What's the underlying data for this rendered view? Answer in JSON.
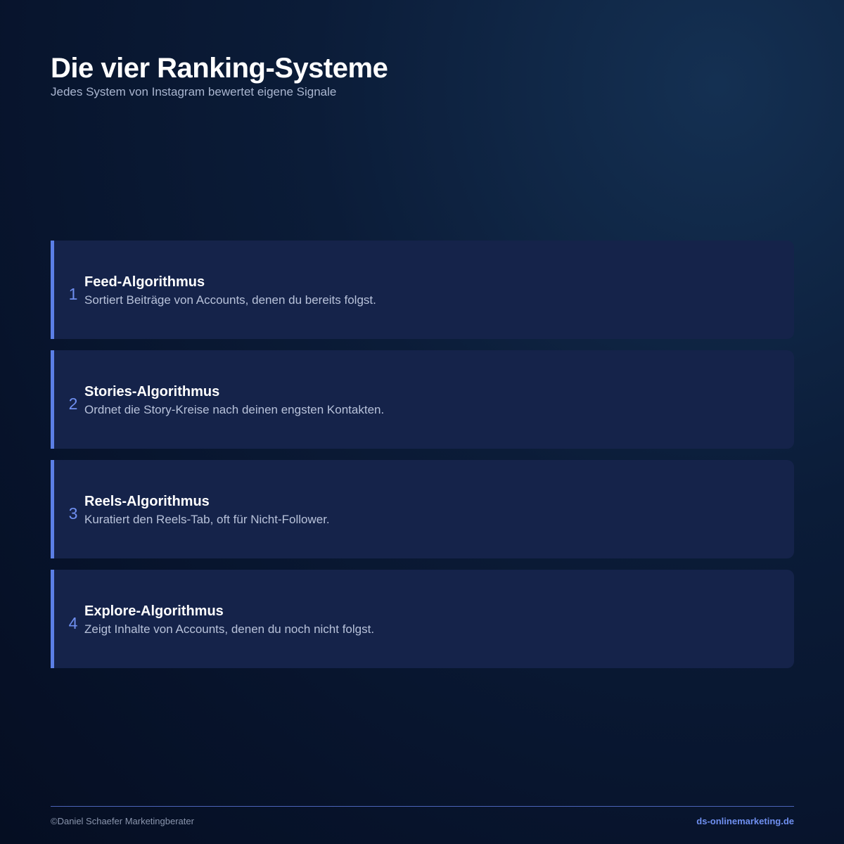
{
  "header": {
    "title": "Die vier Ranking-Systeme",
    "subtitle": "Jedes System von Instagram bewertet eigene Signale"
  },
  "cards": [
    {
      "number": "1",
      "title": "Feed-Algorithmus",
      "description": "Sortiert Beiträge von Accounts, denen du bereits folgst."
    },
    {
      "number": "2",
      "title": "Stories-Algorithmus",
      "description": "Ordnet die Story-Kreise nach deinen engsten Kontakten."
    },
    {
      "number": "3",
      "title": "Reels-Algorithmus",
      "description": "Kuratiert den Reels-Tab, oft für Nicht-Follower."
    },
    {
      "number": "4",
      "title": "Explore-Algorithmus",
      "description": "Zeigt Inhalte von Accounts, denen du noch nicht folgst."
    }
  ],
  "footer": {
    "copyright": "©Daniel Schaefer Marketingberater",
    "website": "ds-onlinemarketing.de"
  },
  "colors": {
    "accent": "#5b7fe6",
    "card_background": "#15234a",
    "page_background": "#0b1c38"
  }
}
